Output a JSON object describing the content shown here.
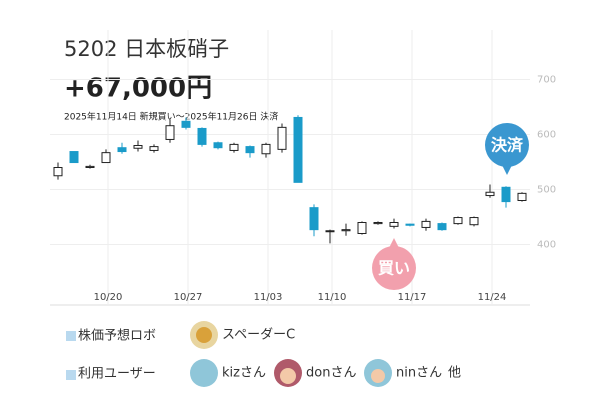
{
  "header": {
    "title": "5202 日本板硝子",
    "profit": "+67,000円",
    "period": "2025年11月14日 新規買い〜2025年11月26日 決済"
  },
  "chart_data": {
    "type": "candlestick",
    "categories": [
      null,
      null,
      null,
      "10/20",
      null,
      null,
      null,
      null,
      "10/27",
      null,
      null,
      null,
      null,
      "11/03",
      null,
      null,
      null,
      "11/10",
      null,
      null,
      null,
      null,
      "11/17",
      null,
      null,
      null,
      null,
      "11/24",
      null,
      null
    ],
    "open": [
      525,
      569,
      540,
      549,
      576,
      575,
      571,
      591,
      624,
      611,
      585,
      571,
      578,
      565,
      573,
      631,
      467,
      424,
      425,
      420,
      438,
      433,
      437,
      431,
      438,
      438,
      436,
      489,
      504,
      480
    ],
    "high": [
      549,
      569,
      545,
      573,
      585,
      589,
      582,
      627,
      631,
      613,
      587,
      585,
      580,
      585,
      620,
      635,
      473,
      427,
      438,
      442,
      442,
      447,
      438,
      447,
      440,
      451,
      451,
      509,
      506,
      495
    ],
    "low": [
      518,
      549,
      538,
      549,
      565,
      569,
      567,
      585,
      609,
      578,
      573,
      567,
      558,
      558,
      567,
      513,
      415,
      402,
      416,
      418,
      436,
      429,
      433,
      425,
      425,
      436,
      433,
      485,
      467,
      478
    ],
    "close": [
      540,
      549,
      542,
      567,
      569,
      580,
      578,
      616,
      613,
      582,
      576,
      582,
      567,
      582,
      613,
      513,
      427,
      425,
      427,
      440,
      440,
      440,
      435,
      442,
      427,
      449,
      449,
      495,
      478,
      493
    ],
    "up_color": "#ffffff",
    "down_color": "#1a9bc9",
    "ylim": [
      290,
      790
    ],
    "yticks": [
      400,
      500,
      600,
      700
    ],
    "grid": true,
    "annotations": [
      "買い",
      "決済"
    ]
  },
  "footer": {
    "robot_label": "株価予想ロボ",
    "robot_name": "スペーダーC",
    "users_label": "利用ユーザー",
    "users": [
      "kizさん",
      "donさん",
      "ninさん"
    ],
    "others": "他"
  }
}
